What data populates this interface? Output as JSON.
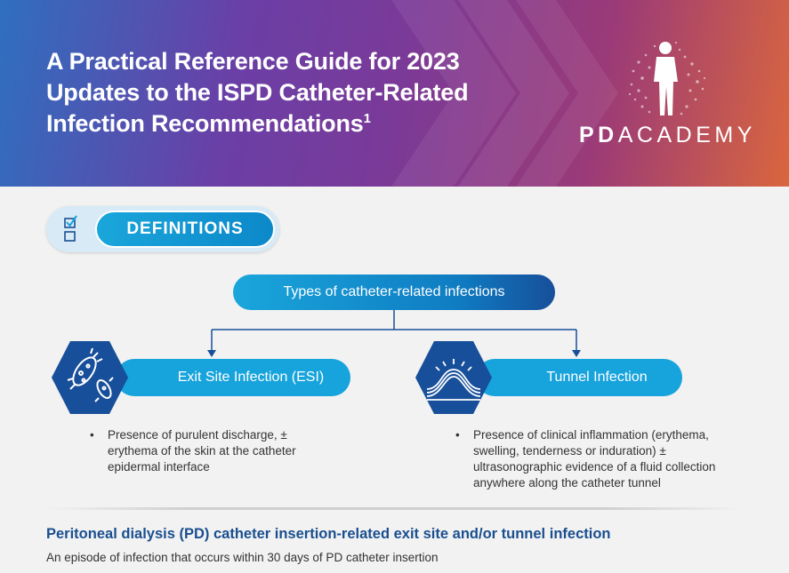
{
  "header": {
    "title_line1": "A Practical Reference Guide for 2023",
    "title_line2": "Updates to the ISPD Catheter-Related",
    "title_line3": "Infection Recommendations",
    "title_superscript": "1",
    "logo_text_bold": "PD",
    "logo_text_regular": "ACADEMY",
    "logo_icon": "human-figure-dots-icon"
  },
  "definitions": {
    "label": "DEFINITIONS",
    "icon": "checklist-icon"
  },
  "types": {
    "label": "Types of catheter-related infections"
  },
  "infections": [
    {
      "label": "Exit Site Infection (ESI)",
      "icon": "bacteria-icon",
      "bullet": "Presence of purulent discharge, ± erythema of the skin at the catheter epidermal interface"
    },
    {
      "label": "Tunnel Infection",
      "icon": "tunnel-inflammation-icon",
      "bullet": "Presence of clinical inflammation (erythema, swelling, tenderness or induration) ± ultrasonographic evidence of a fluid collection anywhere along the catheter tunnel"
    }
  ],
  "section": {
    "title": "Peritoneal dialysis (PD) catheter insertion-related exit site and/or tunnel infection",
    "description": "An episode of infection that occurs within 30 days of PD catheter insertion"
  },
  "colors": {
    "accent_blue": "#17a3dc",
    "dark_blue": "#1a4f8f",
    "hex_blue": "#174f9a",
    "header_purple": "#7a3a98",
    "header_orange": "#d9663e"
  }
}
